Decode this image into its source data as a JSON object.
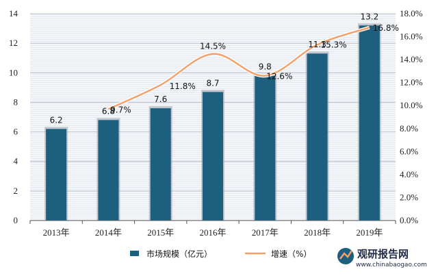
{
  "chart_data": {
    "type": "bar",
    "categories": [
      "2013年",
      "2014年",
      "2015年",
      "2016年",
      "2017年",
      "2018年",
      "2019年"
    ],
    "series": [
      {
        "name": "市场规模（亿元）",
        "type": "bar",
        "axis": "left",
        "values": [
          6.2,
          6.8,
          7.6,
          8.7,
          9.8,
          11.3,
          13.2
        ],
        "labels": [
          "6.2",
          "6.8",
          "7.6",
          "8.7",
          "9.8",
          "11.3",
          "13.2"
        ]
      },
      {
        "name": "增速（%）",
        "type": "line",
        "axis": "right",
        "values": [
          null,
          9.7,
          11.8,
          14.5,
          12.6,
          15.3,
          16.8
        ],
        "labels": [
          "",
          "9.7%",
          "11.8%",
          "14.5%",
          "12.6%",
          "15.3%",
          "16.8%"
        ]
      }
    ],
    "y_left": {
      "ylim": [
        0,
        14
      ],
      "ticks": [
        "0",
        "2",
        "4",
        "6",
        "8",
        "10",
        "12",
        "14"
      ]
    },
    "y_right": {
      "ylim": [
        0,
        18
      ],
      "ticks": [
        "0.0%",
        "2.0%",
        "4.0%",
        "6.0%",
        "8.0%",
        "10.0%",
        "12.0%",
        "14.0%",
        "16.0%",
        "18.0%"
      ]
    },
    "grid": true,
    "legend": "bottom",
    "colors": {
      "bar": "#1c5f7e",
      "line": "#f3a06a",
      "grid": "#b8c0cc",
      "plot_bg": "#e4e9f0"
    }
  },
  "watermark": {
    "brand": "观研报告网",
    "url": "www.chinabaogao.com"
  }
}
